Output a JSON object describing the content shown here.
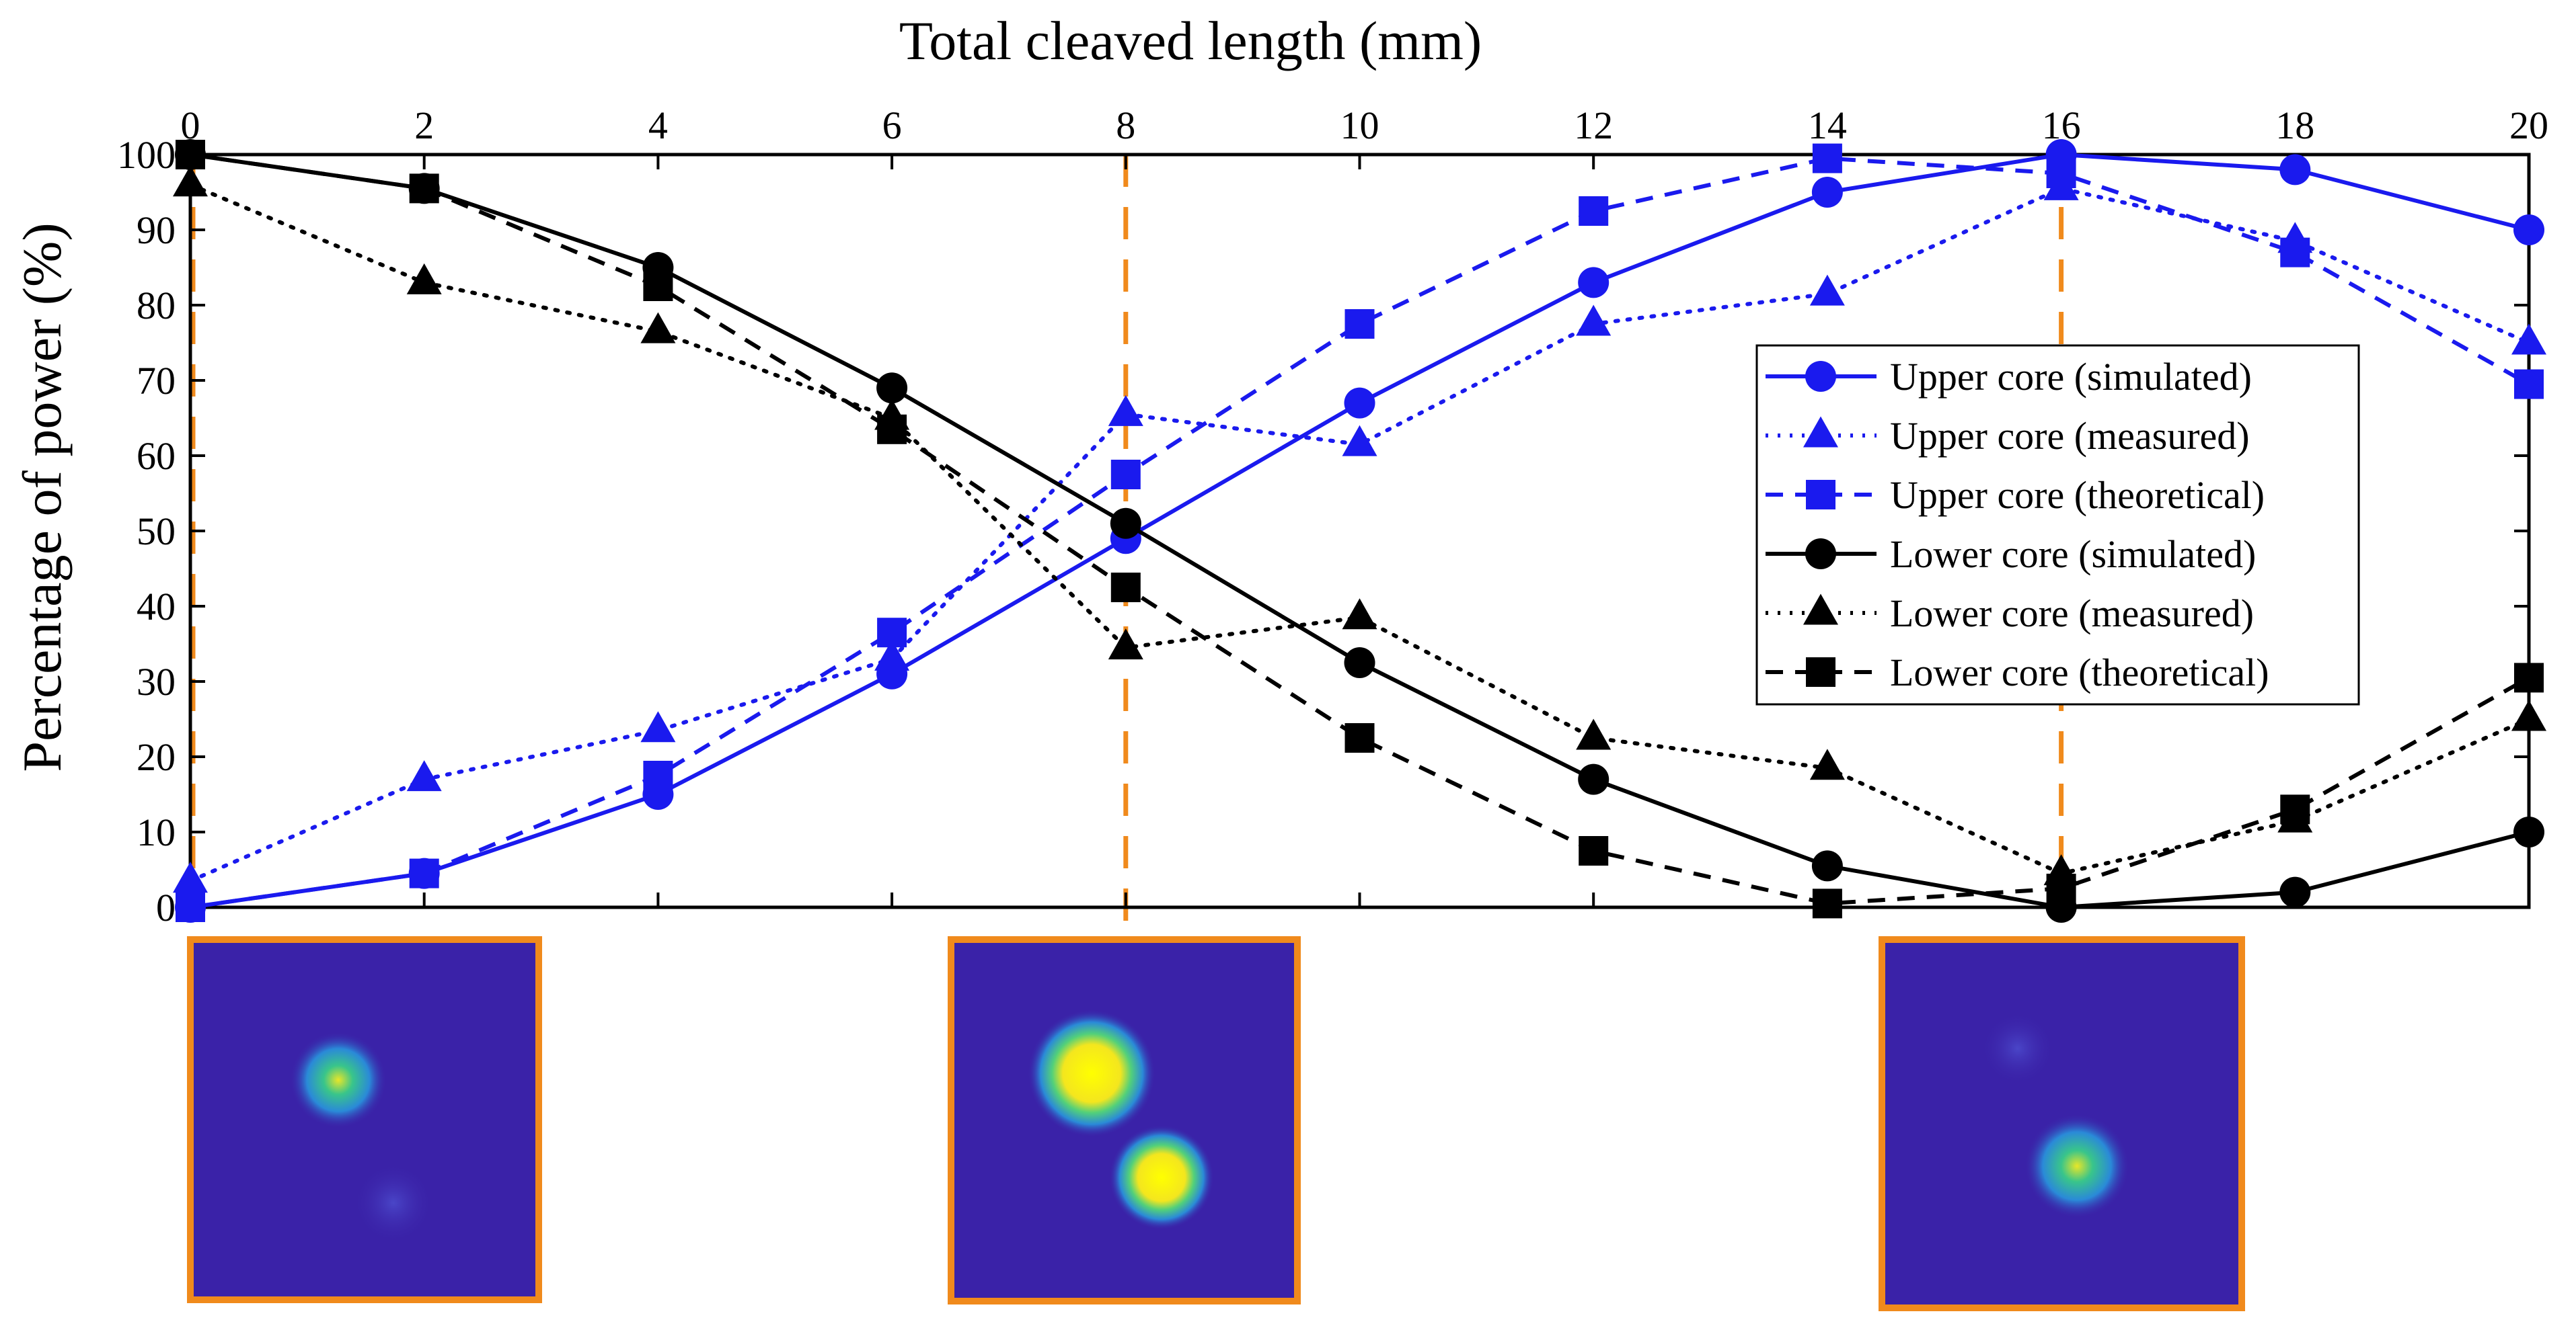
{
  "chart_data": {
    "type": "line",
    "xlabel": "Total cleaved length (mm)",
    "ylabel": "Percentage of power (%)",
    "xlim": [
      0,
      20
    ],
    "ylim": [
      0,
      100
    ],
    "x_ticks": [
      "0",
      "2",
      "4",
      "6",
      "8",
      "10",
      "12",
      "14",
      "16",
      "18",
      "20"
    ],
    "y_ticks": [
      "0",
      "10",
      "20",
      "30",
      "40",
      "50",
      "60",
      "70",
      "80",
      "90",
      "100"
    ],
    "x_axis_position": "top",
    "legend_position": "right",
    "reference_lines_x": [
      0,
      8,
      16
    ],
    "reference_line_color": "#f08a1c",
    "mode_image_positions_mm": [
      0,
      8,
      16
    ],
    "series": [
      {
        "name": "Upper core (simulated)",
        "color": "#1a1aee",
        "dash": "solid",
        "marker": "circle",
        "x": [
          0,
          2,
          4,
          6,
          8,
          10,
          12,
          14,
          16,
          18,
          20
        ],
        "values": [
          0,
          4.5,
          15,
          31,
          49,
          67,
          83,
          95,
          100,
          98,
          90
        ]
      },
      {
        "name": "Upper core (measured)",
        "color": "#1a1aee",
        "dash": "dotted",
        "marker": "triangle",
        "x": [
          0,
          2,
          4,
          6,
          8,
          10,
          12,
          14,
          16,
          18,
          20
        ],
        "values": [
          3.5,
          17,
          23.5,
          33,
          65.5,
          61.5,
          77.5,
          81.5,
          95.5,
          88.5,
          75
        ]
      },
      {
        "name": "Upper core (theoretical)",
        "color": "#1a1aee",
        "dash": "dashed",
        "marker": "square",
        "x": [
          0,
          2,
          4,
          6,
          8,
          10,
          12,
          14,
          16,
          18,
          20
        ],
        "values": [
          0,
          4.5,
          17.5,
          36.5,
          57.5,
          77.5,
          92.5,
          99.5,
          97.5,
          87,
          69.5
        ]
      },
      {
        "name": "Lower core (simulated)",
        "color": "#000000",
        "dash": "solid",
        "marker": "circle",
        "x": [
          0,
          2,
          4,
          6,
          8,
          10,
          12,
          14,
          16,
          18,
          20
        ],
        "values": [
          100,
          95.5,
          85,
          69,
          51,
          32.5,
          17,
          5.5,
          0,
          2,
          10
        ]
      },
      {
        "name": "Lower core (measured)",
        "color": "#000000",
        "dash": "dotted",
        "marker": "triangle",
        "x": [
          0,
          2,
          4,
          6,
          8,
          10,
          12,
          14,
          16,
          18,
          20
        ],
        "values": [
          96,
          83,
          76.5,
          65,
          34.5,
          38.5,
          22.5,
          18.5,
          4.5,
          11.5,
          25
        ]
      },
      {
        "name": "Lower core (theoretical)",
        "color": "#000000",
        "dash": "dashed",
        "marker": "square",
        "x": [
          0,
          2,
          4,
          6,
          8,
          10,
          12,
          14,
          16,
          18,
          20
        ],
        "values": [
          100,
          95.5,
          82.5,
          63.5,
          42.5,
          22.5,
          7.5,
          0.5,
          2.5,
          13,
          30.5
        ]
      }
    ]
  }
}
